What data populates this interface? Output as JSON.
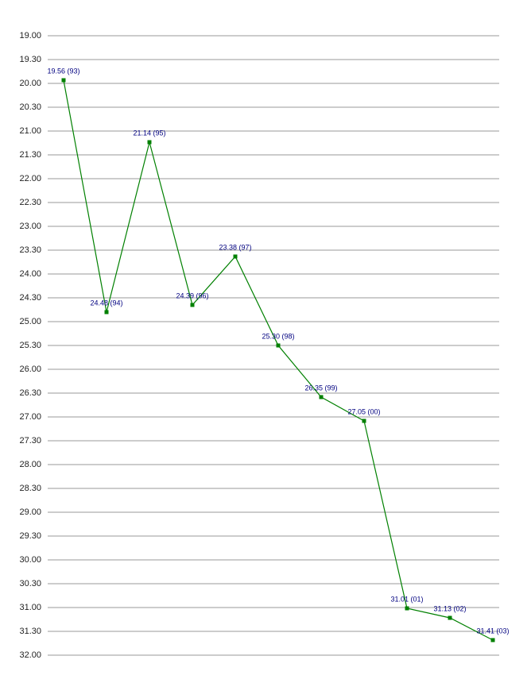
{
  "chart_data": {
    "type": "line",
    "y_inverted": true,
    "grid": true,
    "categories": [
      null,
      null,
      null,
      null,
      null,
      null,
      null,
      null,
      null,
      null,
      null
    ],
    "series": [
      {
        "color": "#008000",
        "values": [
          19.9333,
          24.8,
          21.2333,
          24.65,
          23.6333,
          25.5,
          26.5833,
          27.0833,
          31.0167,
          31.2167,
          31.6833
        ],
        "value_labels": [
          "19.56 (93)",
          "24.48 (94)",
          "21.14 (95)",
          "24.39 (96)",
          "23.38 (97)",
          "25.30 (98)",
          "26.35 (99)",
          "27.05 (00)",
          "31.01 (01)",
          "31.13 (02)",
          "31.41 (03)"
        ]
      }
    ],
    "ylim": [
      19,
      32
    ],
    "yticks": [
      {
        "value": 19,
        "label": "19.00"
      },
      {
        "value": 19.5,
        "label": "19.30"
      },
      {
        "value": 20,
        "label": "20.00"
      },
      {
        "value": 20.5,
        "label": "20.30"
      },
      {
        "value": 21,
        "label": "21.00"
      },
      {
        "value": 21.5,
        "label": "21.30"
      },
      {
        "value": 22,
        "label": "22.00"
      },
      {
        "value": 22.5,
        "label": "22.30"
      },
      {
        "value": 23,
        "label": "23.00"
      },
      {
        "value": 23.5,
        "label": "23.30"
      },
      {
        "value": 24,
        "label": "24.00"
      },
      {
        "value": 24.5,
        "label": "24.30"
      },
      {
        "value": 25,
        "label": "25.00"
      },
      {
        "value": 25.5,
        "label": "25.30"
      },
      {
        "value": 26,
        "label": "26.00"
      },
      {
        "value": 26.5,
        "label": "26.30"
      },
      {
        "value": 27,
        "label": "27.00"
      },
      {
        "value": 27.5,
        "label": "27.30"
      },
      {
        "value": 28,
        "label": "28.00"
      },
      {
        "value": 28.5,
        "label": "28.30"
      },
      {
        "value": 29,
        "label": "29.00"
      },
      {
        "value": 29.5,
        "label": "29.30"
      },
      {
        "value": 30,
        "label": "30.00"
      },
      {
        "value": 30.5,
        "label": "30.30"
      },
      {
        "value": 31,
        "label": "31.00"
      },
      {
        "value": 31.5,
        "label": "31.30"
      },
      {
        "value": 32,
        "label": "32.00"
      }
    ]
  }
}
